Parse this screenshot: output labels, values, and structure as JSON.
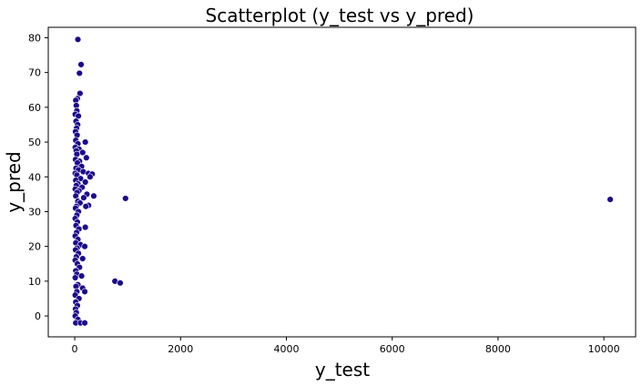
{
  "chart_data": {
    "type": "scatter",
    "title": "Scatterplot (y_test vs y_pred)",
    "xlabel": "y_test",
    "ylabel": "y_pred",
    "xlim": [
      -500,
      10600
    ],
    "ylim": [
      -6,
      83
    ],
    "x_ticks": [
      0,
      2000,
      4000,
      6000,
      8000,
      10000
    ],
    "y_ticks": [
      0,
      10,
      20,
      30,
      40,
      50,
      60,
      70,
      80
    ],
    "grid": false,
    "legend": false,
    "marker_color": "#1a0a8c",
    "series": [
      {
        "points": [
          [
            60,
            79.5
          ],
          [
            120,
            72.3
          ],
          [
            90,
            69.8
          ],
          [
            100,
            64.0
          ],
          [
            50,
            62.5
          ],
          [
            20,
            62.0
          ],
          [
            30,
            60.5
          ],
          [
            40,
            59.0
          ],
          [
            10,
            58.0
          ],
          [
            70,
            57.5
          ],
          [
            25,
            56.0
          ],
          [
            55,
            55.0
          ],
          [
            35,
            54.0
          ],
          [
            15,
            53.0
          ],
          [
            45,
            52.0
          ],
          [
            200,
            50.0
          ],
          [
            20,
            50.5
          ],
          [
            60,
            49.5
          ],
          [
            10,
            48.5
          ],
          [
            80,
            48.0
          ],
          [
            30,
            47.5
          ],
          [
            150,
            47.0
          ],
          [
            40,
            46.5
          ],
          [
            220,
            45.5
          ],
          [
            15,
            45.0
          ],
          [
            90,
            44.5
          ],
          [
            50,
            44.0
          ],
          [
            130,
            43.0
          ],
          [
            25,
            42.5
          ],
          [
            70,
            42.0
          ],
          [
            160,
            41.5
          ],
          [
            10,
            41.0
          ],
          [
            260,
            41.0
          ],
          [
            330,
            40.8
          ],
          [
            40,
            40.5
          ],
          [
            290,
            40.0
          ],
          [
            110,
            39.5
          ],
          [
            20,
            39.0
          ],
          [
            200,
            38.5
          ],
          [
            60,
            38.0
          ],
          [
            30,
            37.5
          ],
          [
            140,
            37.0
          ],
          [
            10,
            36.5
          ],
          [
            80,
            36.0
          ],
          [
            45,
            35.5
          ],
          [
            230,
            35.0
          ],
          [
            360,
            34.5
          ],
          [
            20,
            34.5
          ],
          [
            170,
            34.0
          ],
          [
            960,
            33.8
          ],
          [
            10120,
            33.5
          ],
          [
            60,
            33.0
          ],
          [
            100,
            32.5
          ],
          [
            260,
            31.8
          ],
          [
            30,
            31.5
          ],
          [
            210,
            31.5
          ],
          [
            15,
            31.0
          ],
          [
            70,
            30.0
          ],
          [
            40,
            29.0
          ],
          [
            10,
            28.0
          ],
          [
            50,
            27.0
          ],
          [
            25,
            26.0
          ],
          [
            200,
            25.5
          ],
          [
            80,
            25.0
          ],
          [
            35,
            24.0
          ],
          [
            10,
            23.0
          ],
          [
            60,
            22.0
          ],
          [
            20,
            21.0
          ],
          [
            110,
            20.5
          ],
          [
            190,
            20.0
          ],
          [
            45,
            19.5
          ],
          [
            15,
            19.0
          ],
          [
            70,
            18.0
          ],
          [
            30,
            17.0
          ],
          [
            150,
            16.5
          ],
          [
            10,
            16.0
          ],
          [
            50,
            15.0
          ],
          [
            90,
            14.0
          ],
          [
            20,
            13.0
          ],
          [
            40,
            12.0
          ],
          [
            130,
            11.5
          ],
          [
            10,
            11.0
          ],
          [
            760,
            10.0
          ],
          [
            860,
            9.5
          ],
          [
            60,
            9.0
          ],
          [
            25,
            8.5
          ],
          [
            150,
            8.0
          ],
          [
            190,
            7.0
          ],
          [
            40,
            7.0
          ],
          [
            10,
            6.0
          ],
          [
            80,
            5.0
          ],
          [
            20,
            4.0
          ],
          [
            50,
            3.0
          ],
          [
            15,
            2.0
          ],
          [
            30,
            1.0
          ],
          [
            10,
            0.0
          ],
          [
            60,
            -1.0
          ],
          [
            20,
            -2.0
          ],
          [
            110,
            -2.0
          ],
          [
            190,
            -2.0
          ]
        ]
      }
    ]
  }
}
